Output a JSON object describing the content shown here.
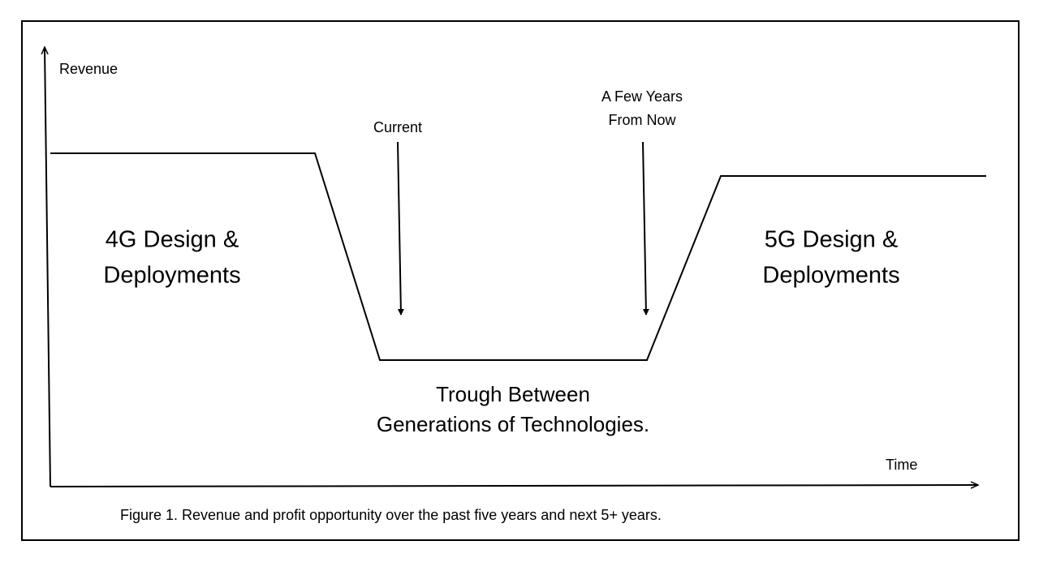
{
  "axes": {
    "y_label": "Revenue",
    "x_label": "Time"
  },
  "annotations": {
    "current": "Current",
    "future": [
      "A Few Years",
      "From Now"
    ]
  },
  "regions": {
    "left": [
      "4G Design &",
      "Deployments"
    ],
    "right": [
      "5G Design &",
      "Deployments"
    ],
    "trough": [
      "Trough Between",
      "Generations of Technologies."
    ]
  },
  "caption": "Figure 1. Revenue and profit opportunity over the past five years and next 5+  years."
}
